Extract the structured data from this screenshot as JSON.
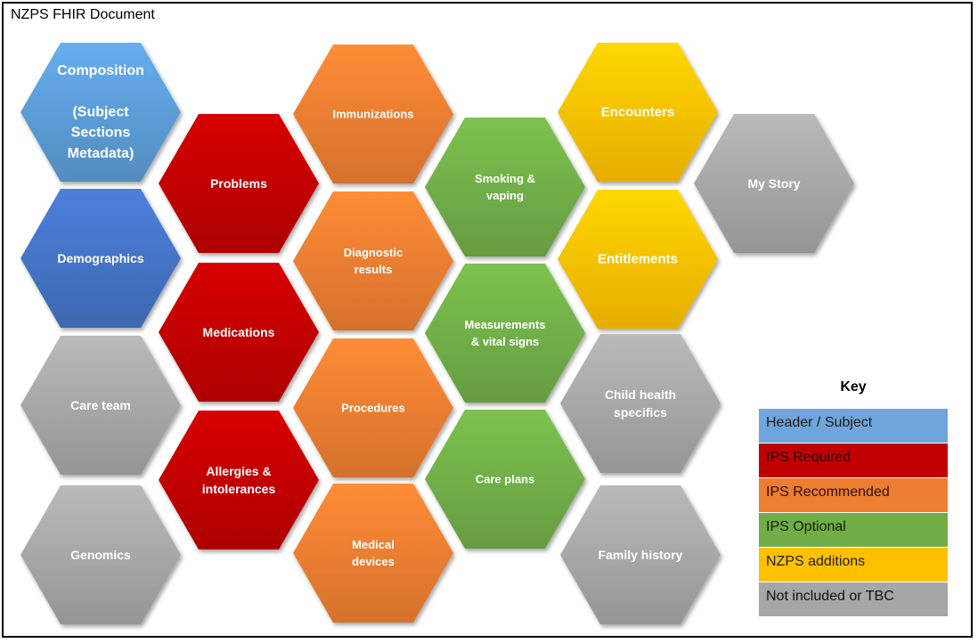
{
  "title": "NZPS FHIR Document",
  "key": {
    "title": "Key",
    "items": [
      {
        "label": "Header / Subject",
        "color": "#6fa5dc",
        "text_color": "#1a1a1a"
      },
      {
        "label": "IPS Required",
        "color": "#c00000",
        "text_color": "#2a0000"
      },
      {
        "label": "IPS Recommended",
        "color": "#ed7d31",
        "text_color": "#2a1200"
      },
      {
        "label": "IPS Optional",
        "color": "#70ad47",
        "text_color": "#112200"
      },
      {
        "label": "NZPS additions",
        "color": "#ffc000",
        "text_color": "#222200"
      },
      {
        "label": "Not included or TBC",
        "color": "#a6a6a6",
        "text_color": "#111111"
      }
    ]
  },
  "hexagons": [
    {
      "lines": [
        "Composition",
        "",
        "(Subject",
        "Sections",
        "Metadata)"
      ],
      "color": "#5b9bd5",
      "category": "Header / Subject"
    },
    {
      "lines": [
        "Demographics"
      ],
      "color": "#4472c4",
      "category": "Header / Subject"
    },
    {
      "lines": [
        "Care team"
      ],
      "color": "#a6a6a6",
      "category": "Not included or TBC"
    },
    {
      "lines": [
        "Genomics"
      ],
      "color": "#a6a6a6",
      "category": "Not included or TBC"
    },
    {
      "lines": [
        "Problems"
      ],
      "color": "#c00000",
      "category": "IPS Required"
    },
    {
      "lines": [
        "Medications"
      ],
      "color": "#c00000",
      "category": "IPS Required"
    },
    {
      "lines": [
        "Allergies &",
        "intolerances"
      ],
      "color": "#c00000",
      "category": "IPS Required"
    },
    {
      "lines": [
        "Immunizations"
      ],
      "color": "#ed7d31",
      "category": "IPS Recommended"
    },
    {
      "lines": [
        "Diagnostic",
        "results"
      ],
      "color": "#ed7d31",
      "category": "IPS Recommended"
    },
    {
      "lines": [
        "Procedures"
      ],
      "color": "#ed7d31",
      "category": "IPS Recommended"
    },
    {
      "lines": [
        "Medical",
        "devices"
      ],
      "color": "#ed7d31",
      "category": "IPS Recommended"
    },
    {
      "lines": [
        "Smoking &",
        "vaping"
      ],
      "color": "#70ad47",
      "category": "IPS Optional"
    },
    {
      "lines": [
        "Measurements",
        "& vital signs"
      ],
      "color": "#70ad47",
      "category": "IPS Optional"
    },
    {
      "lines": [
        "Care plans"
      ],
      "color": "#70ad47",
      "category": "IPS Optional"
    },
    {
      "lines": [
        "Encounters"
      ],
      "color": "#ffc000",
      "category": "NZPS additions"
    },
    {
      "lines": [
        "Entitlements"
      ],
      "color": "#ffc000",
      "category": "NZPS additions"
    },
    {
      "lines": [
        "Child health",
        "specifics"
      ],
      "color": "#a6a6a6",
      "category": "Not included or TBC"
    },
    {
      "lines": [
        "Family history"
      ],
      "color": "#a6a6a6",
      "category": "Not included or TBC"
    },
    {
      "lines": [
        "My Story"
      ],
      "color": "#a6a6a6",
      "category": "Not included or TBC"
    }
  ]
}
